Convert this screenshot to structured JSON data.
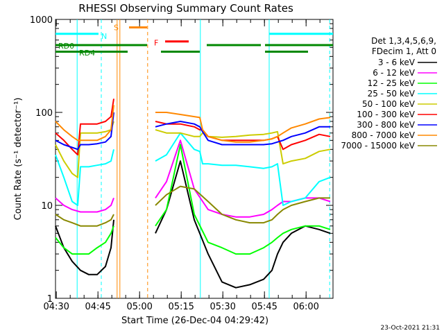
{
  "chart_data": {
    "type": "line",
    "title": "RHESSI Observing Summary Count Rates",
    "ylabel": "Count Rate (s⁻¹ detector⁻¹)",
    "xlabel": "Start Time (26-Dec-04 04:29:42)",
    "x_unit": "minutes since 04:29:42",
    "xlim": [
      0,
      100
    ],
    "ylim": [
      1,
      1000
    ],
    "y_scale": "log",
    "x_ticks": [
      {
        "x": 0.3,
        "label": "04:30"
      },
      {
        "x": 15.3,
        "label": "04:45"
      },
      {
        "x": 30.3,
        "label": "05:00"
      },
      {
        "x": 45.3,
        "label": "05:15"
      },
      {
        "x": 60.3,
        "label": "05:30"
      },
      {
        "x": 75.3,
        "label": "05:45"
      },
      {
        "x": 90.3,
        "label": "06:00"
      }
    ],
    "y_ticks": [
      {
        "y": 1,
        "label": "1"
      },
      {
        "y": 10,
        "label": "10"
      },
      {
        "y": 100,
        "label": "100"
      },
      {
        "y": 1000,
        "label": "1000"
      }
    ],
    "legend": {
      "header": [
        "Det 1,3,4,5,6,9,",
        "FDecim 1, Att 0"
      ],
      "placement": "right"
    },
    "series": [
      {
        "name": "3 - 6 keV",
        "color": "#000000",
        "x": [
          0,
          3,
          6,
          9,
          12,
          15,
          18,
          20,
          21,
          24,
          27,
          30,
          33,
          36,
          40,
          45,
          50,
          55,
          60,
          65,
          70,
          75,
          78,
          80,
          82,
          85,
          90,
          95,
          99
        ],
        "y": [
          6,
          3.5,
          2.5,
          2,
          1.8,
          1.8,
          2.2,
          3.5,
          7,
          null,
          null,
          null,
          null,
          5,
          9,
          30,
          7,
          3,
          1.5,
          1.3,
          1.4,
          1.6,
          2,
          3,
          4,
          5,
          6,
          5.5,
          5
        ]
      },
      {
        "name": "6 - 12 keV",
        "color": "#ff00ff",
        "x": [
          0,
          3,
          6,
          9,
          12,
          15,
          18,
          20,
          21,
          24,
          27,
          30,
          33,
          36,
          40,
          45,
          50,
          55,
          60,
          65,
          70,
          75,
          78,
          80,
          82,
          85,
          90,
          95,
          99
        ],
        "y": [
          12,
          10,
          9,
          8.5,
          8.5,
          8.5,
          9,
          10,
          12,
          null,
          null,
          null,
          null,
          12,
          18,
          50,
          15,
          9,
          8,
          7.5,
          7.5,
          8,
          9,
          10,
          11,
          11,
          12,
          12,
          11
        ]
      },
      {
        "name": "12 - 25 keV",
        "color": "#00ff00",
        "x": [
          0,
          3,
          6,
          9,
          12,
          15,
          18,
          20,
          21,
          24,
          27,
          30,
          33,
          36,
          40,
          45,
          50,
          55,
          60,
          65,
          70,
          75,
          78,
          80,
          82,
          85,
          90,
          95,
          99
        ],
        "y": [
          4.5,
          3.5,
          3,
          3,
          3,
          3.5,
          4,
          5,
          6,
          null,
          null,
          null,
          null,
          6,
          9,
          45,
          8,
          4,
          3.5,
          3,
          3,
          3.5,
          4,
          4.5,
          5,
          5.5,
          6,
          6,
          5.5
        ]
      },
      {
        "name": "25 - 50 keV",
        "color": "#00ffff",
        "x": [
          0,
          3,
          6,
          8,
          9,
          12,
          15,
          18,
          20,
          21,
          24,
          27,
          30,
          33,
          36,
          40,
          45,
          50,
          52,
          53,
          55,
          60,
          65,
          70,
          75,
          78,
          80,
          82,
          85,
          90,
          95,
          99
        ],
        "y": [
          35,
          20,
          11,
          10,
          26,
          26,
          27,
          28,
          30,
          40,
          null,
          null,
          null,
          null,
          30,
          35,
          60,
          40,
          38,
          28,
          28,
          27,
          27,
          26,
          25,
          26,
          28,
          10,
          11,
          12,
          18,
          20
        ]
      },
      {
        "name": "50 - 100 keV",
        "color": "#cccc00",
        "x": [
          0,
          3,
          6,
          8,
          9,
          12,
          15,
          18,
          20,
          21,
          24,
          27,
          30,
          33,
          36,
          40,
          45,
          50,
          52,
          53,
          55,
          60,
          65,
          70,
          75,
          78,
          80,
          82,
          85,
          90,
          95,
          99
        ],
        "y": [
          45,
          30,
          22,
          20,
          60,
          60,
          60,
          62,
          65,
          80,
          null,
          null,
          null,
          null,
          65,
          60,
          60,
          55,
          55,
          60,
          55,
          54,
          55,
          57,
          58,
          60,
          62,
          28,
          30,
          32,
          38,
          40
        ]
      },
      {
        "name": "100 - 300 keV",
        "color": "#ff0000",
        "x": [
          0,
          3,
          6,
          8,
          9,
          12,
          15,
          18,
          20,
          21,
          24,
          27,
          30,
          33,
          36,
          40,
          45,
          50,
          52,
          53,
          55,
          60,
          65,
          70,
          75,
          78,
          80,
          82,
          85,
          90,
          95,
          99
        ],
        "y": [
          60,
          50,
          40,
          35,
          75,
          75,
          75,
          80,
          90,
          140,
          null,
          null,
          null,
          null,
          80,
          75,
          75,
          70,
          65,
          65,
          55,
          50,
          50,
          50,
          50,
          52,
          55,
          40,
          45,
          50,
          58,
          55
        ]
      },
      {
        "name": "300 - 800 keV",
        "color": "#0000ff",
        "x": [
          0,
          3,
          6,
          8,
          9,
          12,
          15,
          18,
          20,
          21,
          24,
          27,
          30,
          33,
          36,
          40,
          45,
          50,
          52,
          53,
          55,
          60,
          65,
          70,
          75,
          78,
          80,
          82,
          85,
          90,
          95,
          99
        ],
        "y": [
          50,
          45,
          42,
          40,
          45,
          45,
          46,
          48,
          55,
          100,
          null,
          null,
          null,
          null,
          70,
          75,
          80,
          75,
          70,
          62,
          50,
          45,
          45,
          45,
          45,
          46,
          48,
          50,
          55,
          60,
          70,
          70
        ]
      },
      {
        "name": "800 - 7000 keV",
        "color": "#ff8800",
        "x": [
          0,
          3,
          6,
          8,
          9,
          12,
          15,
          18,
          20,
          21,
          24,
          27,
          30,
          33,
          36,
          40,
          45,
          50,
          52,
          53,
          55,
          60,
          65,
          70,
          75,
          78,
          80,
          82,
          85,
          90,
          95,
          99
        ],
        "y": [
          80,
          65,
          55,
          50,
          50,
          50,
          50,
          55,
          65,
          120,
          null,
          null,
          null,
          null,
          100,
          100,
          95,
          90,
          88,
          65,
          55,
          50,
          48,
          48,
          50,
          52,
          55,
          60,
          68,
          75,
          85,
          88
        ]
      },
      {
        "name": "7000 - 15000 keV",
        "color": "#888800",
        "x": [
          0,
          3,
          6,
          9,
          12,
          15,
          18,
          20,
          21,
          24,
          27,
          30,
          33,
          36,
          40,
          45,
          50,
          55,
          60,
          65,
          70,
          75,
          78,
          80,
          82,
          85,
          90,
          95,
          99
        ],
        "y": [
          8,
          7,
          6.5,
          6,
          6,
          6,
          6.5,
          7,
          8,
          null,
          null,
          null,
          null,
          10,
          13,
          16,
          15,
          11,
          8,
          7,
          6.5,
          6.5,
          7,
          8,
          9,
          10,
          11,
          12,
          12
        ]
      }
    ],
    "annotations": [
      {
        "text": "N",
        "color": "#00ffff"
      },
      {
        "text": "S",
        "color": "#ff8800"
      },
      {
        "text": "F",
        "color": "#ff0000"
      },
      {
        "text": "RD0",
        "color": "#008800"
      },
      {
        "text": "RD4",
        "color": "#008800"
      }
    ],
    "flag_bars": [
      {
        "flag": "N",
        "color": "#00ffff",
        "y": 700,
        "ranges": [
          [
            0,
            15.5
          ],
          [
            77,
            100
          ]
        ]
      },
      {
        "flag": "S",
        "color": "#ff8800",
        "y": 820,
        "ranges": [
          [
            26.5,
            33
          ]
        ]
      },
      {
        "flag": "F",
        "color": "#ff0000",
        "y": 580,
        "ranges": [
          [
            39.5,
            48
          ]
        ]
      },
      {
        "flag": "RD0",
        "color": "#008800",
        "y": 530,
        "ranges": [
          [
            0,
            33
          ],
          [
            54.5,
            74
          ],
          [
            75.5,
            100
          ]
        ]
      },
      {
        "flag": "RD4",
        "color": "#008800",
        "y": 450,
        "ranges": [
          [
            0,
            26
          ],
          [
            38,
            52
          ],
          [
            75.5,
            91
          ]
        ]
      }
    ],
    "vlines": [
      {
        "x": 7.8,
        "color": "#00ffff",
        "dash": false
      },
      {
        "x": 16.5,
        "color": "#00ffff",
        "dash": true
      },
      {
        "x": 22.2,
        "color": "#ff8800",
        "dash": false
      },
      {
        "x": 23.2,
        "color": "#ff8800",
        "dash": false
      },
      {
        "x": 33.2,
        "color": "#ff8800",
        "dash": true
      },
      {
        "x": 52.2,
        "color": "#00ffff",
        "dash": false
      },
      {
        "x": 77.0,
        "color": "#00ffff",
        "dash": false
      },
      {
        "x": 98.8,
        "color": "#00ffff",
        "dash": true
      }
    ]
  },
  "footer": {
    "timestamp": "23-Oct-2021 21:31"
  }
}
